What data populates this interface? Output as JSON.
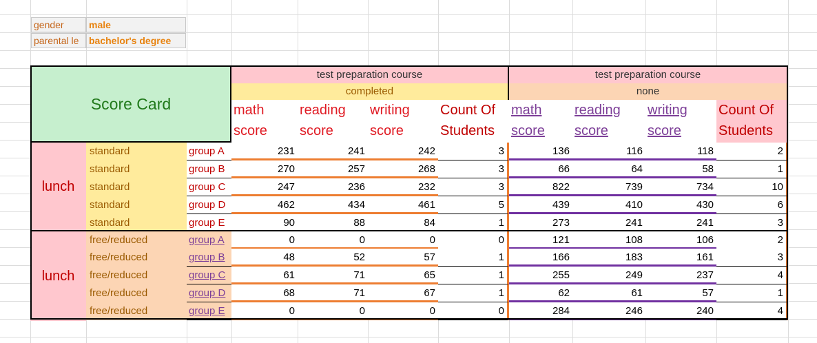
{
  "filters": {
    "gender": {
      "label": "gender",
      "value": "male"
    },
    "parental": {
      "label": "parental le",
      "value": "bachelor's degree"
    }
  },
  "title": "Score Card",
  "col_groups": [
    {
      "top": "test preparation course",
      "sub": "completed"
    },
    {
      "top": "test preparation course",
      "sub": "none"
    }
  ],
  "headers": {
    "math": [
      "math",
      "score"
    ],
    "reading": [
      "reading",
      "score"
    ],
    "writing": [
      "writing",
      "score"
    ],
    "count": [
      "Count Of",
      "Students"
    ]
  },
  "sections": [
    {
      "lunch_label": "lunch",
      "rows": [
        {
          "type": "standard",
          "group": "group A",
          "c": [
            231,
            241,
            242,
            3
          ],
          "n": [
            136,
            116,
            118,
            2
          ]
        },
        {
          "type": "standard",
          "group": "group B",
          "c": [
            270,
            257,
            268,
            3
          ],
          "n": [
            66,
            64,
            58,
            1
          ]
        },
        {
          "type": "standard",
          "group": "group C",
          "c": [
            247,
            236,
            232,
            3
          ],
          "n": [
            822,
            739,
            734,
            10
          ]
        },
        {
          "type": "standard",
          "group": "group D",
          "c": [
            462,
            434,
            461,
            5
          ],
          "n": [
            439,
            410,
            430,
            6
          ]
        },
        {
          "type": "standard",
          "group": "group E",
          "c": [
            90,
            88,
            84,
            1
          ],
          "n": [
            273,
            241,
            241,
            3
          ]
        }
      ]
    },
    {
      "lunch_label": "lunch",
      "rows": [
        {
          "type": "free/reduced",
          "group": "group A",
          "c": [
            0,
            0,
            0,
            0
          ],
          "n": [
            121,
            108,
            106,
            2
          ]
        },
        {
          "type": "free/reduced",
          "group": "group B",
          "c": [
            48,
            52,
            57,
            1
          ],
          "n": [
            166,
            183,
            161,
            3
          ]
        },
        {
          "type": "free/reduced",
          "group": "group C",
          "c": [
            61,
            71,
            65,
            1
          ],
          "n": [
            255,
            249,
            237,
            4
          ]
        },
        {
          "type": "free/reduced",
          "group": "group D",
          "c": [
            68,
            71,
            67,
            1
          ],
          "n": [
            62,
            61,
            57,
            1
          ]
        },
        {
          "type": "free/reduced",
          "group": "group E",
          "c": [
            0,
            0,
            0,
            0
          ],
          "n": [
            284,
            246,
            240,
            4
          ]
        }
      ]
    }
  ]
}
